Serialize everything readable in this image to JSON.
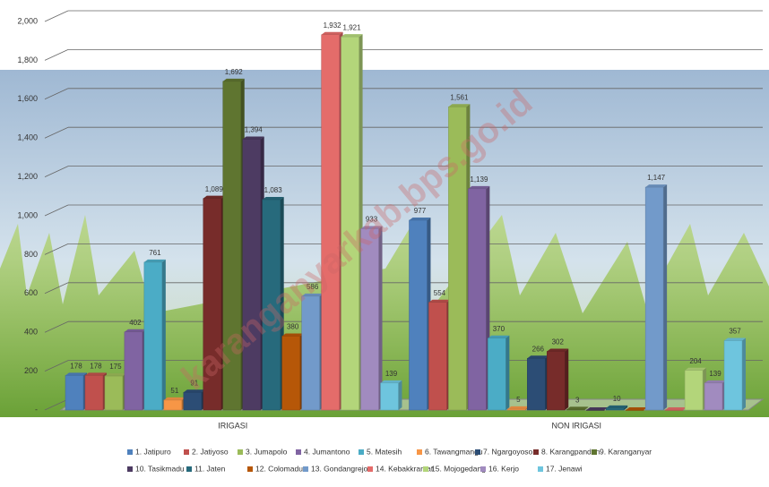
{
  "chart_data": {
    "type": "bar3d",
    "categories": [
      "IRIGASI",
      "NON IRIGASI"
    ],
    "ylim": [
      0,
      2000
    ],
    "yticks": [
      {
        "value": 0,
        "label": "-"
      },
      200,
      400,
      600,
      800,
      {
        "value": 1000,
        "label": "1,000"
      },
      {
        "value": 1200,
        "label": "1,200"
      },
      {
        "value": 1400,
        "label": "1,400"
      },
      {
        "value": 1600,
        "label": "1,600"
      },
      {
        "value": 1800,
        "label": "1,800"
      },
      {
        "value": 2000,
        "label": "2,000"
      }
    ],
    "grid": true,
    "legend": "bottom",
    "watermark": "karanganyarkab.bps.go.id",
    "series": [
      {
        "name": "1. Jatipuro",
        "color": "#4f81bd",
        "values": [
          178,
          977
        ],
        "value_labels": [
          "178",
          "977"
        ]
      },
      {
        "name": "2. Jatiyoso",
        "color": "#c0504d",
        "values": [
          178,
          554
        ],
        "value_labels": [
          "178",
          "554"
        ]
      },
      {
        "name": "3. Jumapolo",
        "color": "#9bbb59",
        "values": [
          175,
          1561
        ],
        "value_labels": [
          "175",
          "1,561"
        ]
      },
      {
        "name": "4. Jumantono",
        "color": "#8064a2",
        "values": [
          402,
          1139
        ],
        "value_labels": [
          "402",
          "1,139"
        ]
      },
      {
        "name": "5. Matesih",
        "color": "#4bacc6",
        "values": [
          761,
          370
        ],
        "value_labels": [
          "761",
          "370"
        ]
      },
      {
        "name": "6. Tawangmangu",
        "color": "#f79646",
        "values": [
          51,
          5
        ],
        "value_labels": [
          "51",
          "5"
        ]
      },
      {
        "name": "7. Ngargoyoso",
        "color": "#2c4d75",
        "values": [
          91,
          266
        ],
        "value_labels": [
          "91",
          "266"
        ]
      },
      {
        "name": "8. Karangpandan",
        "color": "#772c2a",
        "values": [
          1089,
          302
        ],
        "value_labels": [
          "1,089",
          "302"
        ]
      },
      {
        "name": "9. Karanganyar",
        "color": "#5f7530",
        "values": [
          1692,
          3
        ],
        "value_labels": [
          "1,692",
          "3"
        ]
      },
      {
        "name": "10. Tasikmadu",
        "color": "#4d3b62",
        "values": [
          1394,
          0
        ],
        "value_labels": [
          "1,394",
          null
        ]
      },
      {
        "name": "11. Jaten",
        "color": "#276a7c",
        "values": [
          1083,
          10
        ],
        "value_labels": [
          "1,083",
          "10"
        ]
      },
      {
        "name": "12. Colomadu",
        "color": "#b65708",
        "values": [
          380,
          0
        ],
        "value_labels": [
          "380",
          null
        ]
      },
      {
        "name": "13. Gondangrejo",
        "color": "#729aca",
        "values": [
          586,
          1147
        ],
        "value_labels": [
          "586",
          "1,147"
        ]
      },
      {
        "name": "14. Kebakkramat",
        "color": "#e46c6a",
        "values": [
          1932,
          0
        ],
        "value_labels": [
          "1,932",
          null
        ]
      },
      {
        "name": "15. Mojogedang",
        "color": "#b3d57a",
        "values": [
          1921,
          204
        ],
        "value_labels": [
          "1,921",
          "204"
        ]
      },
      {
        "name": "16. Kerjo",
        "color": "#a18bbf",
        "values": [
          933,
          139
        ],
        "value_labels": [
          "933",
          "139"
        ]
      },
      {
        "name": "17. Jenawi",
        "color": "#6ec5de",
        "values": [
          139,
          357
        ],
        "value_labels": [
          "139",
          "357"
        ]
      }
    ]
  }
}
